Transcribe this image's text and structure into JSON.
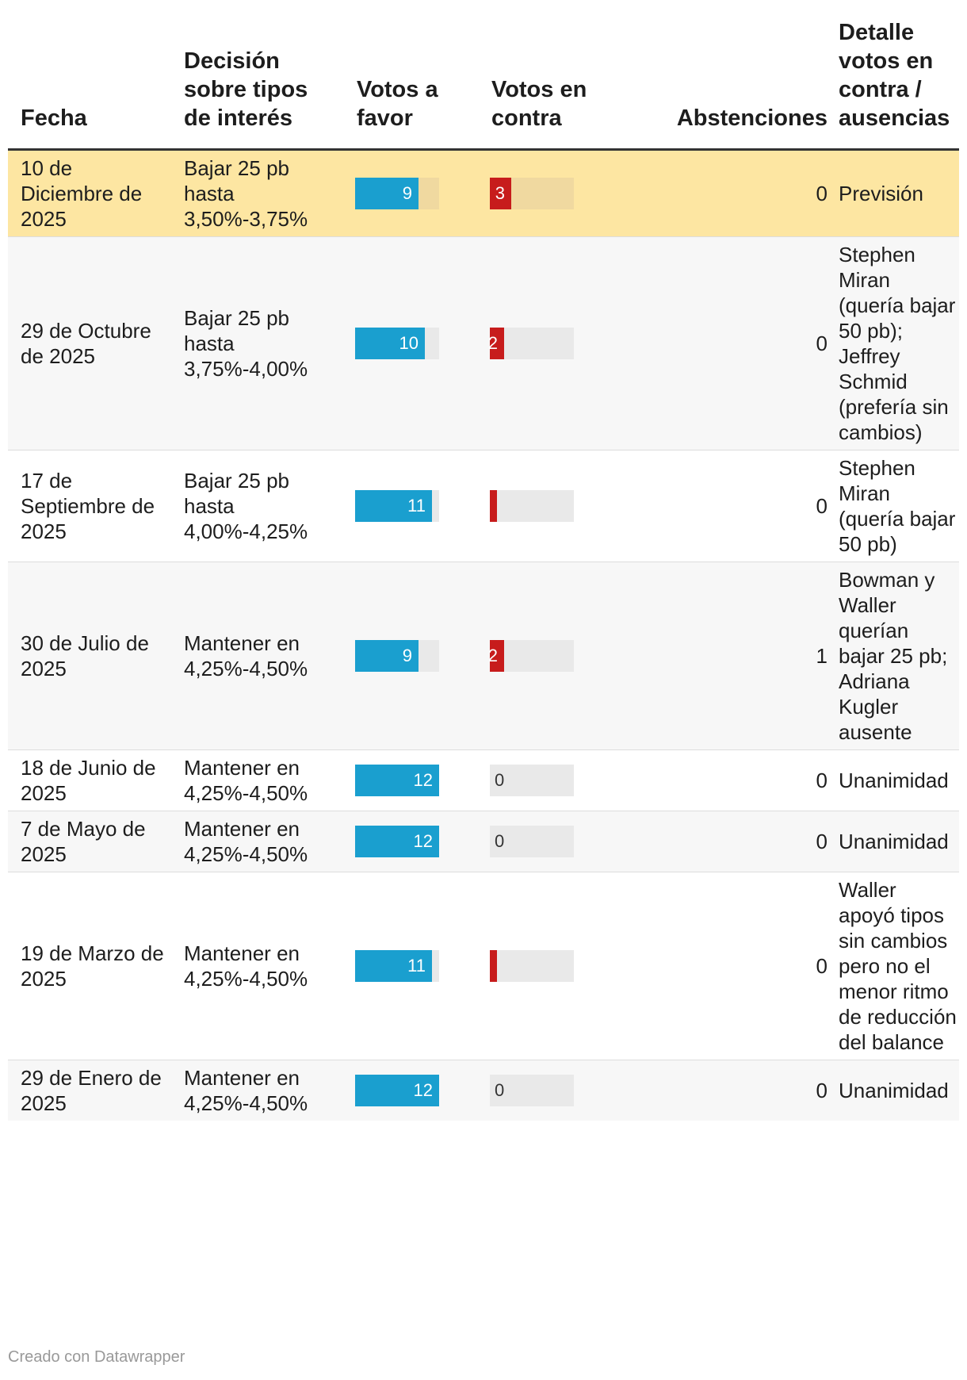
{
  "chart_data": {
    "type": "table",
    "columns": [
      "Fecha",
      "Decisión sobre tipos de interés",
      "Votos a favor",
      "Votos en contra",
      "Abstenciones",
      "Detalle votos en contra / ausencias"
    ],
    "bar_max": 12,
    "colors": {
      "favor": "#1a9fcf",
      "contra": "#c71c1c",
      "track": "#e9e9e9",
      "highlight": "#fde6a2"
    },
    "rows": [
      {
        "fecha": "10 de Diciembre de 2025",
        "decision": "Bajar 25 pb hasta 3,50%-3,75%",
        "favor": 9,
        "contra": 3,
        "abstenciones": 0,
        "detalle": "Previsión",
        "highlight": true
      },
      {
        "fecha": "29 de Octubre de 2025",
        "decision": "Bajar 25 pb hasta 3,75%-4,00%",
        "favor": 10,
        "contra": 2,
        "abstenciones": 0,
        "detalle": "Stephen Miran (quería bajar 50 pb); Jeffrey Schmid (prefería sin cambios)"
      },
      {
        "fecha": "17 de Septiembre de 2025",
        "decision": "Bajar 25 pb hasta 4,00%-4,25%",
        "favor": 11,
        "contra": 1,
        "abstenciones": 0,
        "detalle": "Stephen Miran (quería bajar 50 pb)"
      },
      {
        "fecha": "30 de Julio de 2025",
        "decision": "Mantener en 4,25%-4,50%",
        "favor": 9,
        "contra": 2,
        "abstenciones": 1,
        "detalle": "Bowman y Waller querían bajar 25 pb; Adriana Kugler ausente"
      },
      {
        "fecha": "18 de Junio de 2025",
        "decision": "Mantener en 4,25%-4,50%",
        "favor": 12,
        "contra": 0,
        "abstenciones": 0,
        "detalle": "Unanimidad"
      },
      {
        "fecha": "7 de Mayo de 2025",
        "decision": "Mantener en 4,25%-4,50%",
        "favor": 12,
        "contra": 0,
        "abstenciones": 0,
        "detalle": "Unanimidad"
      },
      {
        "fecha": "19 de Marzo de 2025",
        "decision": "Mantener en 4,25%-4,50%",
        "favor": 11,
        "contra": 1,
        "abstenciones": 0,
        "detalle": "Waller apoyó tipos sin cambios pero no el menor ritmo de reducción del balance"
      },
      {
        "fecha": "29 de Enero de 2025",
        "decision": "Mantener en 4,25%-4,50%",
        "favor": 12,
        "contra": 0,
        "abstenciones": 0,
        "detalle": "Unanimidad"
      }
    ]
  },
  "footer": {
    "credit": "Creado con Datawrapper"
  }
}
